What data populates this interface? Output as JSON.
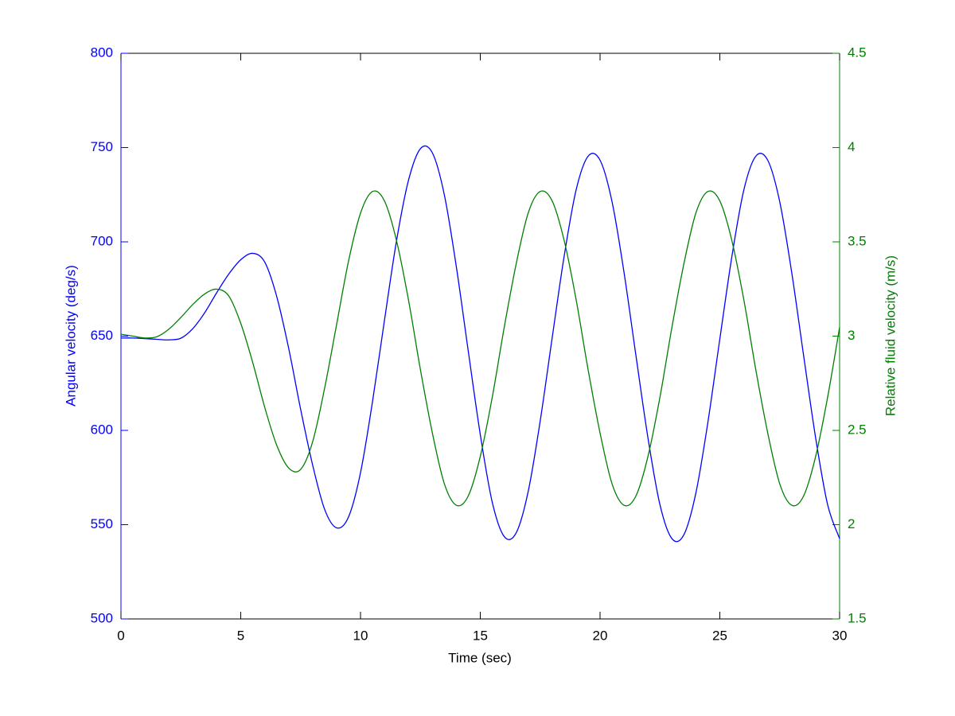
{
  "chart_data": {
    "type": "line",
    "xlabel": "Time (sec)",
    "ylabel": "Angular velocity (deg/s)",
    "y2label": "Relative fluid velocity (m/s)",
    "x": [
      0,
      0.5,
      1,
      1.5,
      2,
      2.5,
      3,
      3.5,
      4,
      4.5,
      5,
      5.5,
      6,
      6.5,
      7,
      7.5,
      8,
      8.5,
      9,
      9.5,
      10,
      10.5,
      11,
      11.5,
      12,
      12.5,
      13,
      13.5,
      14,
      14.5,
      15,
      15.5,
      16,
      16.5,
      17,
      17.5,
      18,
      18.5,
      19,
      19.5,
      20,
      20.5,
      21,
      21.5,
      22,
      22.5,
      23,
      23.5,
      24,
      24.5,
      25,
      25.5,
      26,
      26.5,
      27,
      27.5,
      28,
      28.5,
      29,
      29.5,
      30
    ],
    "series": [
      {
        "name": "Angular velocity",
        "color": "#0000ff",
        "axis": "y",
        "values": [
          649,
          649,
          648.7,
          648.3,
          648,
          648.9,
          654.0,
          662.5,
          673.1,
          682.9,
          690.5,
          693.9,
          689.3,
          671.1,
          643.6,
          611.2,
          581.7,
          558.2,
          548.3,
          554.1,
          577.6,
          615.2,
          658.4,
          700.3,
          732.5,
          749.4,
          747.2,
          724.9,
          686.8,
          641.9,
          597.8,
          561.9,
          543.7,
          545.7,
          567.6,
          604.9,
          649.0,
          692.3,
          727.5,
          745.4,
          743.3,
          721.3,
          683.8,
          639.5,
          596.0,
          560.6,
          542.6,
          544.7,
          566.8,
          604.2,
          648.5,
          692.0,
          727.4,
          745.4,
          743.3,
          721.3,
          683.8,
          639.5,
          596.0,
          560.6,
          542.6
        ]
      },
      {
        "name": "Relative fluid velocity",
        "color": "#008000",
        "axis": "y2",
        "values": [
          3.01,
          3.0,
          2.99,
          2.997,
          3.037,
          3.099,
          3.168,
          3.224,
          3.249,
          3.213,
          3.068,
          2.86,
          2.623,
          2.422,
          2.301,
          2.293,
          2.439,
          2.723,
          3.06,
          3.398,
          3.652,
          3.767,
          3.717,
          3.508,
          3.194,
          2.823,
          2.486,
          2.217,
          2.103,
          2.153,
          2.362,
          2.676,
          3.047,
          3.384,
          3.653,
          3.767,
          3.717,
          3.508,
          3.194,
          2.823,
          2.486,
          2.217,
          2.103,
          2.153,
          2.362,
          2.676,
          3.047,
          3.384,
          3.653,
          3.767,
          3.717,
          3.508,
          3.194,
          2.823,
          2.486,
          2.217,
          2.103,
          2.153,
          2.362,
          2.676,
          3.047
        ]
      }
    ],
    "xlim": [
      0,
      30
    ],
    "xticks": [
      0,
      5,
      10,
      15,
      20,
      25,
      30
    ],
    "ylim": [
      500,
      800
    ],
    "yticks": [
      500,
      550,
      600,
      650,
      700,
      750,
      800
    ],
    "y2lim": [
      1.5,
      4.5
    ],
    "y2ticks": [
      1.5,
      2,
      2.5,
      3,
      3.5,
      4,
      4.5
    ],
    "grid": false
  }
}
